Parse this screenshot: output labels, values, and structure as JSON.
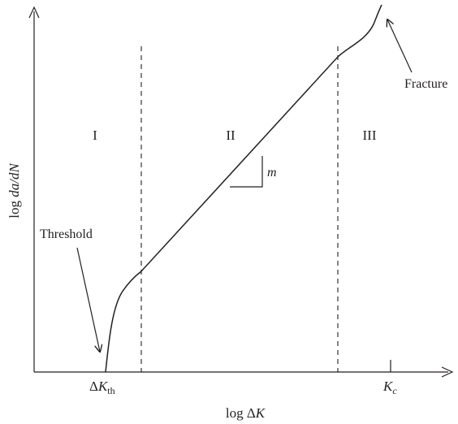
{
  "diagram": {
    "regions": {
      "region_1": "I",
      "region_2": "II",
      "region_3": "III"
    },
    "annotations": {
      "threshold": "Threshold",
      "fracture": "Fracture",
      "slope": "m"
    },
    "axes": {
      "x_label_prefix": "log Δ",
      "x_label_var": "K",
      "y_label_prefix": "log ",
      "y_label_var": "da/dN"
    },
    "x_ticks": {
      "delta_k_th_prefix": "Δ",
      "delta_k_th_var": "K",
      "delta_k_th_sub": "th",
      "k_c_var": "K",
      "k_c_sub": "c"
    }
  }
}
